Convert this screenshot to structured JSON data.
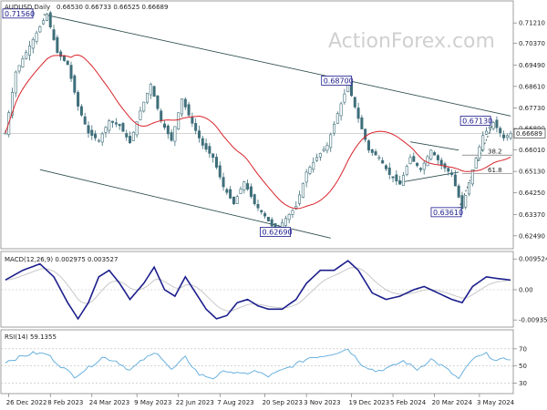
{
  "header": {
    "symbol": "AUDUSD,Daily",
    "ohlc": "0.66530 0.66733 0.66525 0.66689"
  },
  "watermark": "ActionForex.com",
  "chart_data": [
    {
      "type": "bar",
      "panel": "price",
      "ylim": [
        0.62,
        0.72
      ],
      "yticks": [
        "0.71210",
        "0.70370",
        "0.69490",
        "0.68610",
        "0.67730",
        "0.66890",
        "0.66010",
        "0.65130",
        "0.64250",
        "0.63370",
        "0.62490"
      ],
      "ytick_values": [
        0.7121,
        0.7037,
        0.6949,
        0.6861,
        0.6773,
        0.6689,
        0.6601,
        0.6513,
        0.6425,
        0.6337,
        0.6249
      ],
      "current_price": "0.66689",
      "current_value": 0.66689,
      "price_anchors": [
        [
          0,
          0.667
        ],
        [
          3,
          0.692
        ],
        [
          6,
          0.7
        ],
        [
          9,
          0.708
        ],
        [
          12,
          0.7156
        ],
        [
          15,
          0.7
        ],
        [
          18,
          0.695
        ],
        [
          21,
          0.678
        ],
        [
          24,
          0.667
        ],
        [
          27,
          0.664
        ],
        [
          30,
          0.672
        ],
        [
          33,
          0.67
        ],
        [
          36,
          0.663
        ],
        [
          39,
          0.676
        ],
        [
          42,
          0.687
        ],
        [
          45,
          0.672
        ],
        [
          48,
          0.664
        ],
        [
          51,
          0.681
        ],
        [
          54,
          0.671
        ],
        [
          57,
          0.662
        ],
        [
          60,
          0.657
        ],
        [
          63,
          0.645
        ],
        [
          66,
          0.638
        ],
        [
          69,
          0.647
        ],
        [
          72,
          0.638
        ],
        [
          75,
          0.633
        ],
        [
          78,
          0.6269
        ],
        [
          81,
          0.632
        ],
        [
          84,
          0.637
        ],
        [
          87,
          0.651
        ],
        [
          90,
          0.657
        ],
        [
          93,
          0.662
        ],
        [
          96,
          0.675
        ],
        [
          99,
          0.687
        ],
        [
          102,
          0.673
        ],
        [
          105,
          0.66
        ],
        [
          108,
          0.657
        ],
        [
          111,
          0.65
        ],
        [
          114,
          0.646
        ],
        [
          117,
          0.657
        ],
        [
          120,
          0.652
        ],
        [
          123,
          0.66
        ],
        [
          126,
          0.654
        ],
        [
          129,
          0.65
        ],
        [
          132,
          0.6361
        ],
        [
          135,
          0.652
        ],
        [
          138,
          0.666
        ],
        [
          141,
          0.6713
        ],
        [
          144,
          0.665
        ],
        [
          146,
          0.6669
        ]
      ],
      "channel_upper": [
        [
          11,
          0.7156
        ],
        [
          146,
          0.674
        ]
      ],
      "channel_lower": [
        [
          10,
          0.652
        ],
        [
          94,
          0.624
        ]
      ],
      "triangle_upper": [
        [
          117,
          0.6634
        ],
        [
          131,
          0.66
        ]
      ],
      "triangle_lower": [
        [
          114,
          0.6468
        ],
        [
          131,
          0.651
        ]
      ],
      "support_trend": [
        [
          131,
          0.6361
        ],
        [
          141,
          0.6713
        ]
      ],
      "level_61_8": {
        "label": "61.8",
        "value": 0.6505
      },
      "level_38_2": {
        "label": "38.2",
        "value": 0.658
      },
      "labels": [
        {
          "text": "0.71560",
          "x": 12,
          "y": 0.7156
        },
        {
          "text": "0.68700",
          "x": 99,
          "y": 0.687
        },
        {
          "text": "0.67130",
          "x": 141,
          "y": 0.6713
        },
        {
          "text": "0.63610",
          "x": 132,
          "y": 0.6361
        },
        {
          "text": "0.62690",
          "x": 78,
          "y": 0.6269
        }
      ]
    },
    {
      "type": "line",
      "panel": "macd",
      "title": "MACD(12,26,9) 0.002975 0.003527",
      "ylim": [
        -0.011,
        0.011
      ],
      "yticks": [
        "0.009524",
        "0.00",
        "-0.00935"
      ],
      "ytick_values": [
        0.009524,
        0.0,
        -0.00935
      ],
      "macd_anchors": [
        [
          0,
          0.003
        ],
        [
          5,
          0.006
        ],
        [
          10,
          0.008
        ],
        [
          14,
          0.004
        ],
        [
          18,
          -0.004
        ],
        [
          21,
          -0.009
        ],
        [
          24,
          -0.004
        ],
        [
          27,
          0.004
        ],
        [
          30,
          0.006
        ],
        [
          33,
          0.002
        ],
        [
          36,
          -0.003
        ],
        [
          40,
          0.002
        ],
        [
          43,
          0.007
        ],
        [
          46,
          0.0
        ],
        [
          49,
          -0.002
        ],
        [
          52,
          0.004
        ],
        [
          55,
          -0.001
        ],
        [
          58,
          -0.006
        ],
        [
          61,
          -0.009
        ],
        [
          64,
          -0.008
        ],
        [
          67,
          -0.004
        ],
        [
          70,
          -0.003
        ],
        [
          73,
          -0.005
        ],
        [
          76,
          -0.006
        ],
        [
          80,
          -0.006
        ],
        [
          84,
          -0.003
        ],
        [
          87,
          0.002
        ],
        [
          91,
          0.006
        ],
        [
          95,
          0.006
        ],
        [
          99,
          0.009
        ],
        [
          102,
          0.006
        ],
        [
          106,
          -0.001
        ],
        [
          110,
          -0.003
        ],
        [
          114,
          -0.002
        ],
        [
          118,
          0.0
        ],
        [
          121,
          0.001
        ],
        [
          125,
          -0.001
        ],
        [
          129,
          -0.003
        ],
        [
          132,
          -0.004
        ],
        [
          135,
          0.001
        ],
        [
          139,
          0.004
        ],
        [
          142,
          0.0035
        ],
        [
          146,
          0.003
        ]
      ]
    },
    {
      "type": "line",
      "panel": "rsi",
      "title": "RSI(14) 59.1355",
      "ylim": [
        20,
        90
      ],
      "yticks": [
        "70",
        "50",
        "30"
      ],
      "ytick_values": [
        70,
        50,
        30
      ],
      "rsi_anchors": [
        [
          0,
          55
        ],
        [
          4,
          60
        ],
        [
          8,
          65
        ],
        [
          12,
          64
        ],
        [
          16,
          50
        ],
        [
          20,
          38
        ],
        [
          24,
          48
        ],
        [
          28,
          60
        ],
        [
          32,
          56
        ],
        [
          36,
          45
        ],
        [
          40,
          58
        ],
        [
          44,
          66
        ],
        [
          48,
          45
        ],
        [
          52,
          60
        ],
        [
          56,
          40
        ],
        [
          60,
          36
        ],
        [
          64,
          45
        ],
        [
          68,
          40
        ],
        [
          72,
          44
        ],
        [
          76,
          38
        ],
        [
          80,
          45
        ],
        [
          84,
          52
        ],
        [
          88,
          60
        ],
        [
          92,
          62
        ],
        [
          96,
          66
        ],
        [
          99,
          70
        ],
        [
          103,
          52
        ],
        [
          107,
          44
        ],
        [
          111,
          48
        ],
        [
          115,
          56
        ],
        [
          119,
          46
        ],
        [
          123,
          58
        ],
        [
          127,
          48
        ],
        [
          131,
          35
        ],
        [
          135,
          58
        ],
        [
          139,
          64
        ],
        [
          142,
          56
        ],
        [
          146,
          59
        ]
      ]
    }
  ],
  "xaxis": {
    "labels": [
      "26 Dec 2022",
      "8 Feb 2023",
      "24 Mar 2023",
      "9 May 2023",
      "22 Jun 2023",
      "7 Aug 2023",
      "20 Sep 2023",
      "3 Nov 2023",
      "19 Dec 2023",
      "5 Feb 2024",
      "20 Mar 2024",
      "3 May 2024"
    ],
    "label_bars": [
      1,
      13,
      25,
      38,
      50,
      62,
      75,
      87,
      100,
      112,
      124,
      137
    ],
    "bars": 147
  },
  "colors": {
    "candle": "#3e6e7a",
    "ma": "#d9242b",
    "macd": "#1c1f8c",
    "signal": "#c8c8c8",
    "rsi": "#5aa9dc",
    "channel": "#2f4f4f",
    "grid": "#d9d9d9",
    "label_border": "#1a1a8c"
  }
}
